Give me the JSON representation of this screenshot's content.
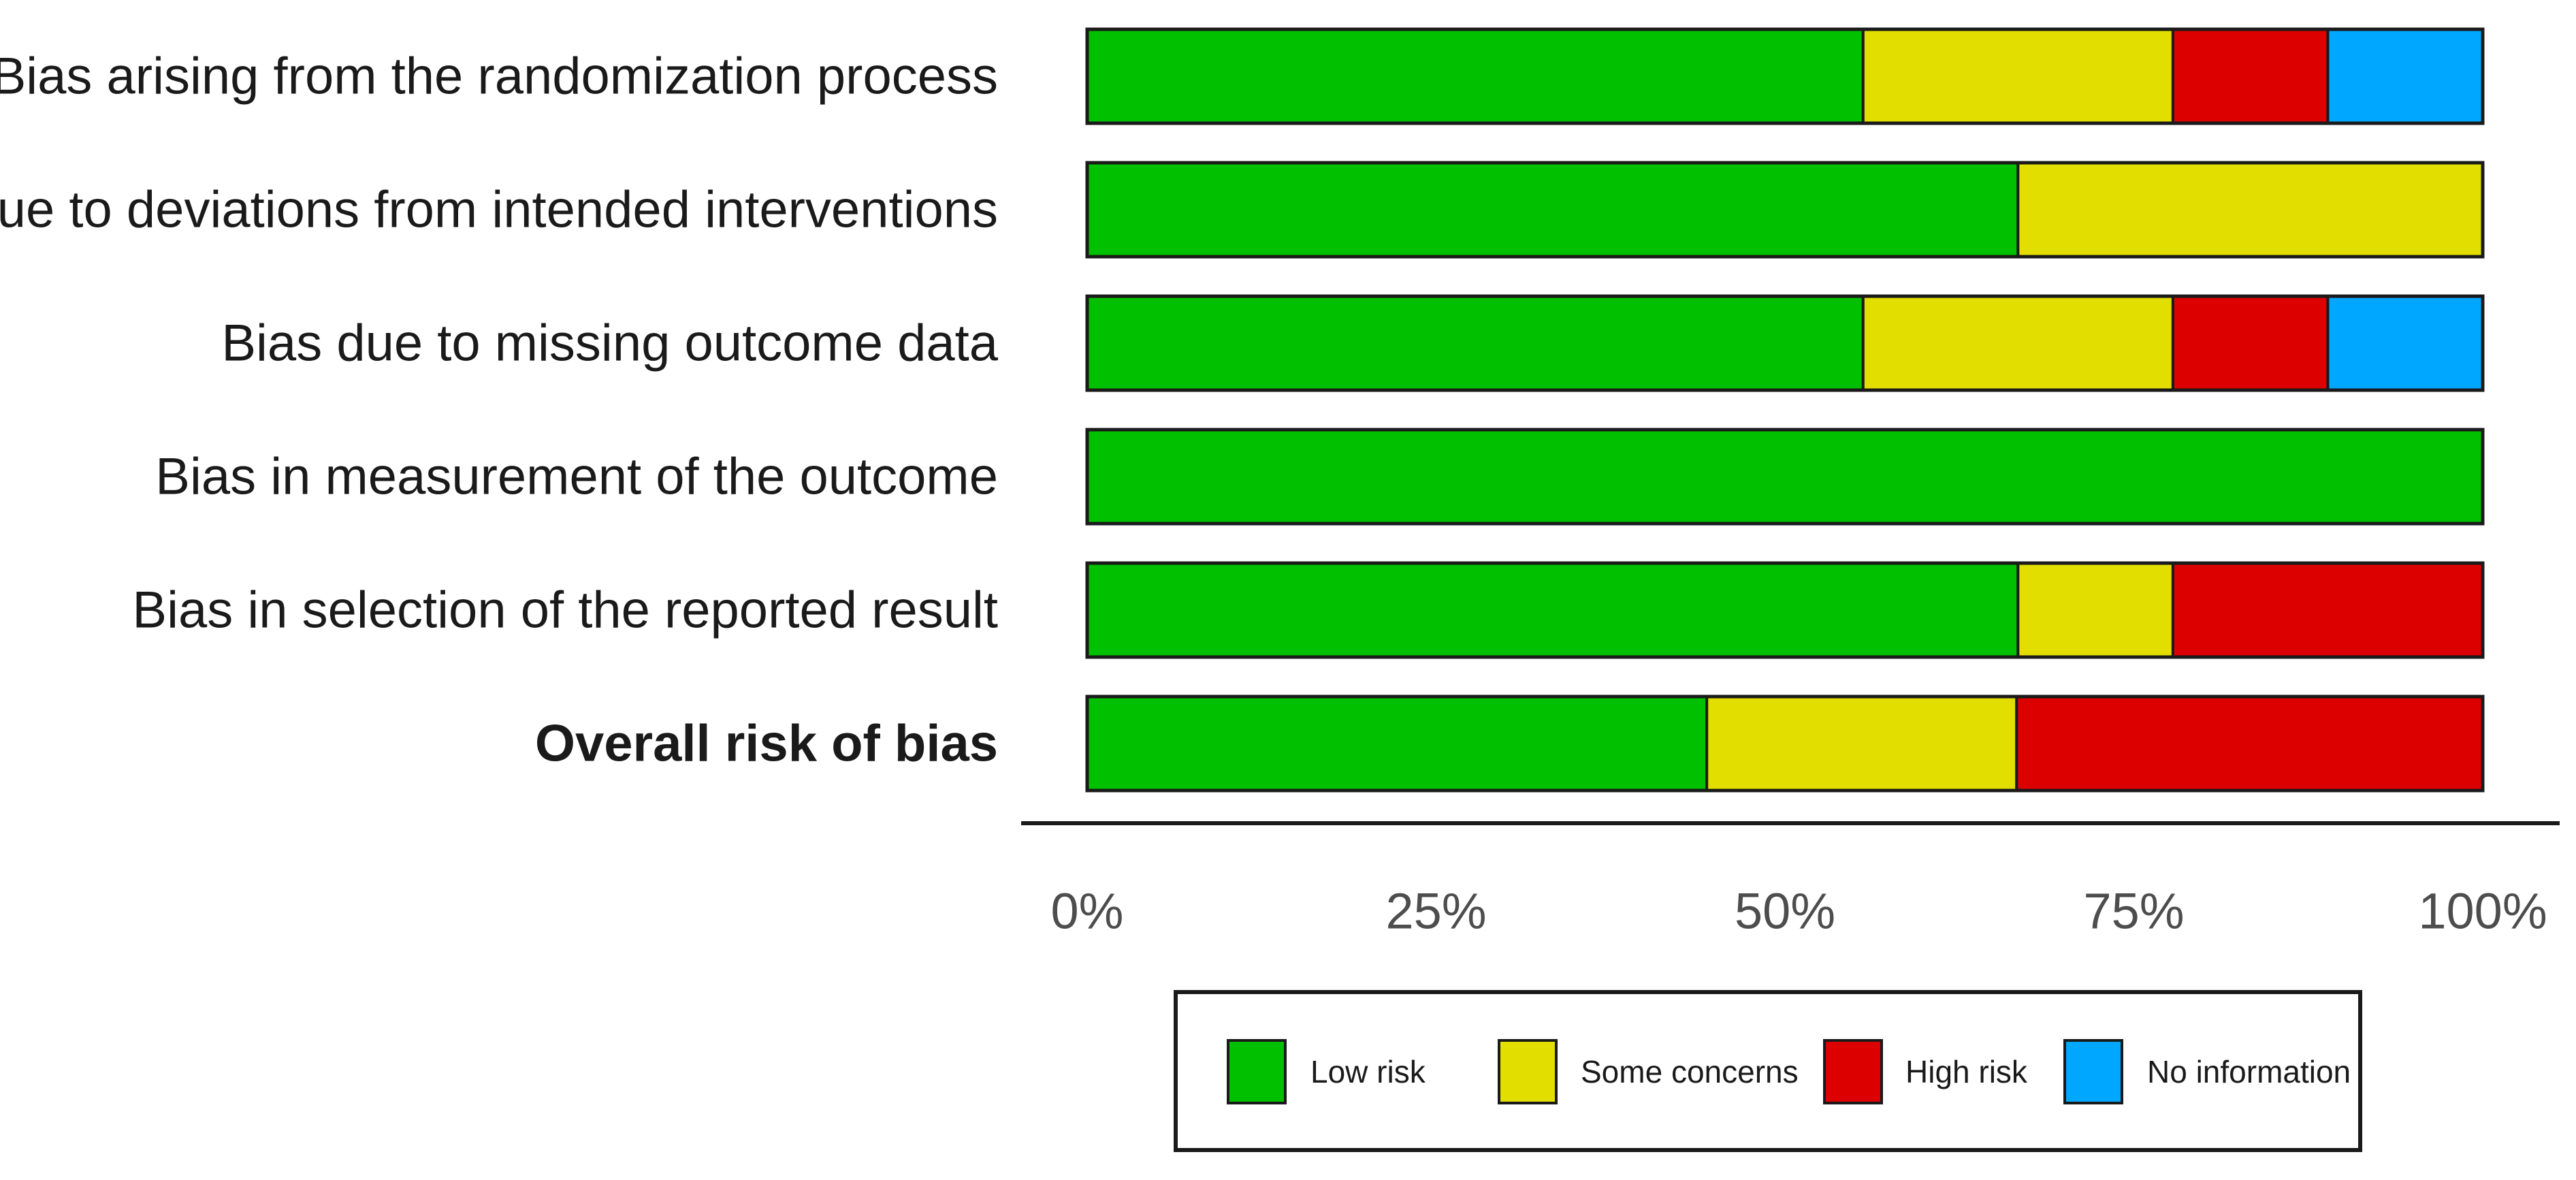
{
  "chart_data": {
    "type": "bar",
    "orientation": "horizontal",
    "stacked": true,
    "percent": true,
    "categories": [
      "Bias arising from the randomization process",
      "Bias due to deviations from intended interventions",
      "Bias due to missing outcome data",
      "Bias in measurement of the outcome",
      "Bias in selection of the reported result",
      "Overall risk of bias"
    ],
    "bold_categories": [
      "Overall risk of bias"
    ],
    "series": [
      {
        "name": "Low risk",
        "color": "#00c000",
        "values": [
          55.6,
          66.7,
          55.6,
          100,
          66.7,
          44.4
        ]
      },
      {
        "name": "Some concerns",
        "color": "#e2df00",
        "values": [
          22.2,
          33.3,
          22.2,
          0,
          11.1,
          22.2
        ]
      },
      {
        "name": "High risk",
        "color": "#dd0000",
        "values": [
          11.1,
          0,
          11.1,
          0,
          22.2,
          33.4
        ]
      },
      {
        "name": "No information",
        "color": "#00a7ff",
        "values": [
          11.1,
          0,
          11.1,
          0,
          0,
          0
        ]
      }
    ],
    "xlim": [
      0,
      100
    ],
    "xticks": [
      0,
      25,
      50,
      75,
      100
    ],
    "xtick_labels": [
      "0%",
      "25%",
      "50%",
      "75%",
      "100%"
    ],
    "legend_position": "bottom",
    "grid": false
  }
}
